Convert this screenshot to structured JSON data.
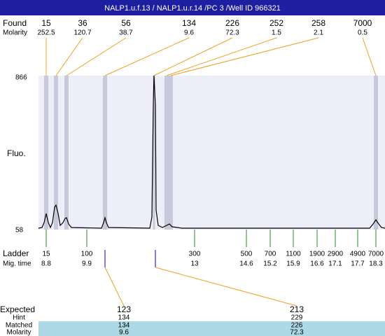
{
  "header": {
    "title": "NALP1.u.f.13 / NALP1.u.r.14 /PC 3 /Well ID 966321"
  },
  "found": {
    "label": "Found",
    "molarity_label": "Molarity",
    "sizes": [
      15,
      36,
      56,
      134,
      226,
      252,
      258,
      7000
    ],
    "molarity": [
      252.5,
      120.7,
      38.7,
      9.6,
      72.3,
      1.5,
      2.1,
      0.5
    ]
  },
  "plot": {
    "y_label": "Fluo.",
    "y_top": 866,
    "y_bottom": 58
  },
  "ladder": {
    "label": "Ladder",
    "time_label": "Mig. time",
    "sizes": [
      15,
      100,
      300,
      500,
      700,
      1100,
      1900,
      2900,
      4900,
      7000
    ],
    "times": [
      8.8,
      9.9,
      13,
      14.6,
      15.2,
      15.9,
      16.6,
      17.1,
      17.7,
      18.3
    ]
  },
  "expected": {
    "label": "Expected",
    "hint_label": "Hint",
    "matched_label": "Matched",
    "molarity_label": "Molarity",
    "sizes": [
      123,
      213
    ],
    "hint": [
      134,
      229
    ],
    "matched": [
      134,
      226
    ],
    "molarity": [
      9.6,
      72.3
    ]
  }
}
